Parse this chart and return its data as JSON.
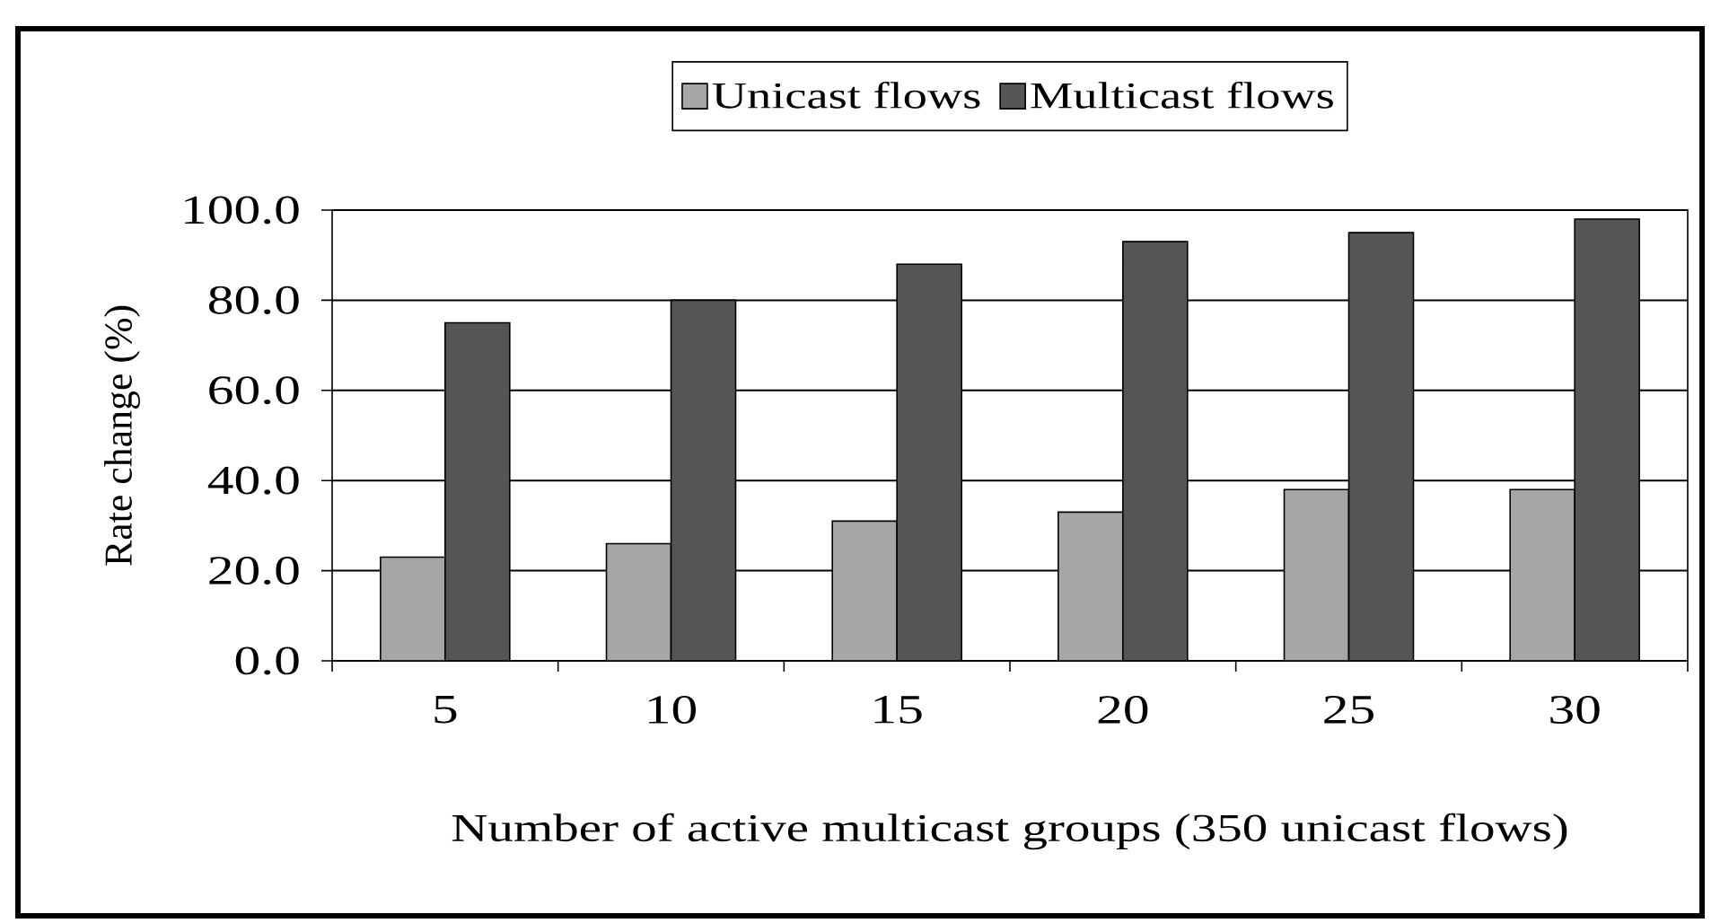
{
  "chart_data": {
    "type": "bar",
    "categories": [
      "5",
      "10",
      "15",
      "20",
      "25",
      "30"
    ],
    "xlabel": "Number of active multicast groups (350 unicast flows)",
    "ylabel": "Rate change (%)",
    "ylim": [
      0,
      100
    ],
    "yticks": [
      {
        "value": 0,
        "label": "0.0"
      },
      {
        "value": 20,
        "label": "20.0"
      },
      {
        "value": 40,
        "label": "40.0"
      },
      {
        "value": 60,
        "label": "60.0"
      },
      {
        "value": 80,
        "label": "80.0"
      },
      {
        "value": 100,
        "label": "100.0"
      }
    ],
    "series": [
      {
        "name": "Unicast flows",
        "color": "#a6a6a6",
        "values": [
          23,
          26,
          31,
          33,
          38,
          38
        ]
      },
      {
        "name": "Multicast flows",
        "color": "#555555",
        "values": [
          75,
          80,
          88,
          93,
          95,
          98
        ]
      }
    ],
    "grid": "y",
    "legend": "top"
  }
}
